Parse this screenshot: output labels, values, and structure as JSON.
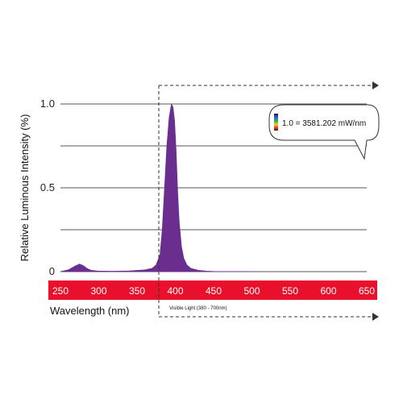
{
  "chart_data": {
    "type": "area",
    "xlabel": "Wavelength (nm)",
    "ylabel": "Relative Luminous Intensity (%)",
    "xlim": [
      250,
      650
    ],
    "ylim": [
      0,
      1.0
    ],
    "x_ticks": [
      250,
      300,
      350,
      400,
      450,
      500,
      550,
      600,
      650
    ],
    "y_ticks": [
      {
        "value": 0,
        "label": "0"
      },
      {
        "value": 0.5,
        "label": "0.5"
      },
      {
        "value": 1.0,
        "label": "1.0"
      }
    ],
    "gridlines": [
      0.25,
      0.5,
      0.75,
      1.0
    ],
    "series": [
      {
        "x": [
          250,
          260,
          270,
          275,
          280,
          285,
          290,
          300,
          320,
          340,
          360,
          370,
          375,
          380,
          383,
          386,
          389,
          392,
          395,
          397,
          399,
          401,
          403,
          405,
          408,
          411,
          415,
          420,
          430,
          440,
          450,
          470,
          500
        ],
        "y": [
          0.0,
          0.01,
          0.035,
          0.045,
          0.035,
          0.018,
          0.008,
          0.003,
          0.002,
          0.004,
          0.01,
          0.02,
          0.04,
          0.1,
          0.25,
          0.5,
          0.75,
          0.92,
          1.0,
          0.98,
          0.9,
          0.72,
          0.48,
          0.3,
          0.15,
          0.08,
          0.04,
          0.02,
          0.008,
          0.003,
          0.001,
          0.0,
          0.0
        ],
        "color": "#6a2e8f"
      }
    ],
    "wavelength_bar_color": "#e8102a",
    "visible_range": {
      "start": 380,
      "end": 700,
      "label": "Visible Light (380 - 700nm)"
    },
    "annotation": {
      "text": "1.0 = 3581.202 mW/nm"
    }
  }
}
